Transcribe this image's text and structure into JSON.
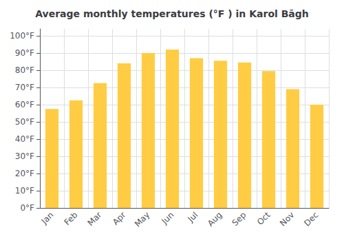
{
  "chart_data": {
    "type": "bar",
    "title": "Average monthly temperatures (°F ) in Karol Bāgh",
    "categories": [
      "Jan",
      "Feb",
      "Mar",
      "Apr",
      "May",
      "Jun",
      "Jul",
      "Aug",
      "Sep",
      "Oct",
      "Nov",
      "Dec"
    ],
    "values": [
      57.5,
      62.5,
      72.5,
      84,
      90,
      92,
      87,
      85.5,
      84.5,
      79.5,
      69,
      60
    ],
    "color": "#FFCC44",
    "ylim": [
      0,
      104
    ],
    "yticks": [
      {
        "value": 0,
        "label": "0°F"
      },
      {
        "value": 10,
        "label": "10°F"
      },
      {
        "value": 20,
        "label": "20°F"
      },
      {
        "value": 30,
        "label": "30°F"
      },
      {
        "value": 40,
        "label": "40°F"
      },
      {
        "value": 50,
        "label": "50°F"
      },
      {
        "value": 60,
        "label": "60°F"
      },
      {
        "value": 70,
        "label": "70°F"
      },
      {
        "value": 80,
        "label": "80°F"
      },
      {
        "value": 90,
        "label": "90°F"
      },
      {
        "value": 100,
        "label": "100°F"
      }
    ],
    "grid": true
  }
}
